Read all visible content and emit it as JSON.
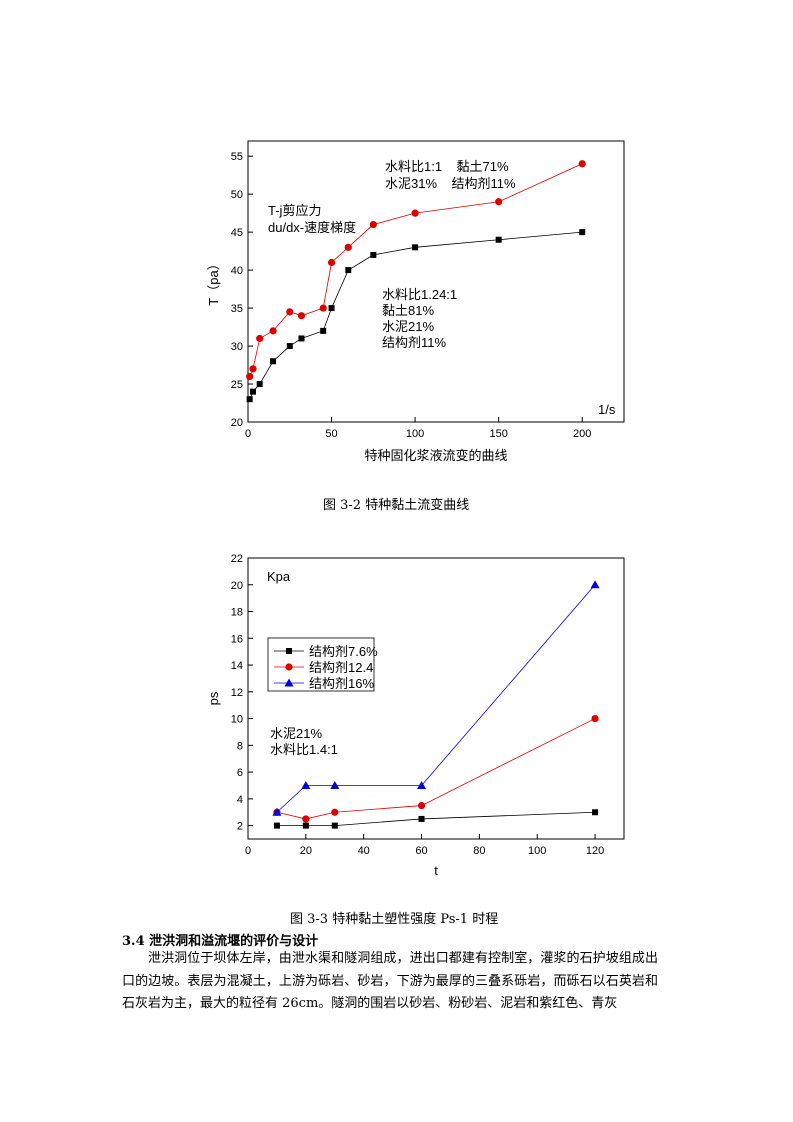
{
  "chart_data": [
    {
      "type": "line",
      "xlabel": "特种固化浆液流变的曲线",
      "ylabel": "T（pa）",
      "xlim": [
        0,
        225
      ],
      "ylim": [
        20,
        57
      ],
      "xticks": [
        0,
        50,
        100,
        150,
        200
      ],
      "yticks": [
        20,
        25,
        30,
        35,
        40,
        45,
        50,
        55
      ],
      "grid": false,
      "annotations": [
        {
          "lines": [
            "水料比1:1    黏土71%",
            "水泥31%    结构剂11%"
          ]
        },
        {
          "lines": [
            "T-j剪应力",
            "du/dx-速度梯度"
          ]
        },
        {
          "lines": [
            "水料比1.24:1",
            "黏土81%",
            "水泥21%",
            "结构剂11%"
          ]
        },
        {
          "lines": [
            "1/s"
          ]
        }
      ],
      "series": [
        {
          "color": "#000000",
          "marker": "square",
          "x": [
            1,
            3,
            7,
            15,
            25,
            32,
            45,
            50,
            60,
            75,
            100,
            150,
            200
          ],
          "y": [
            23,
            24,
            25,
            28,
            30,
            31,
            32,
            35,
            40,
            42,
            43,
            44,
            45
          ]
        },
        {
          "color": "#dd0000",
          "marker": "circle",
          "x": [
            1,
            3,
            7,
            15,
            25,
            32,
            45,
            50,
            60,
            75,
            100,
            150,
            200
          ],
          "y": [
            26,
            27,
            31,
            32,
            34.5,
            34,
            35,
            41,
            43,
            46,
            47.5,
            49,
            54
          ]
        }
      ]
    },
    {
      "type": "line",
      "xlabel": "t",
      "ylabel": "ps",
      "xlim": [
        0,
        130
      ],
      "ylim": [
        1,
        22
      ],
      "xticks": [
        0,
        20,
        40,
        60,
        80,
        100,
        120
      ],
      "yticks": [
        2,
        4,
        6,
        8,
        10,
        12,
        14,
        16,
        18,
        20,
        22
      ],
      "grid": false,
      "legend_position": "middle-left",
      "annotations": [
        {
          "lines": [
            "Kpa"
          ]
        },
        {
          "lines": [
            "水泥21%",
            "水料比1.4:1"
          ]
        }
      ],
      "series": [
        {
          "name": "结构剂7.6%",
          "color": "#000000",
          "marker": "square",
          "x": [
            10,
            20,
            30,
            60,
            120
          ],
          "y": [
            2,
            2,
            2,
            2.5,
            3
          ]
        },
        {
          "name": "结构剂12.4",
          "color": "#dd0000",
          "marker": "circle",
          "x": [
            10,
            20,
            30,
            60,
            120
          ],
          "y": [
            3,
            2.5,
            3,
            3.5,
            10
          ]
        },
        {
          "name": "结构剂16%",
          "color": "#0000dd",
          "marker": "triangle",
          "x": [
            10,
            20,
            30,
            60,
            120
          ],
          "y": [
            3,
            5,
            5,
            5,
            20
          ]
        }
      ]
    }
  ],
  "captions": {
    "fig1": "图 3-2 特种黏土流变曲线",
    "fig2": "图 3-3  特种黏土塑性强度 Ps-1 时程"
  },
  "section": {
    "heading": "3.4 泄洪洞和溢流堰的评价与设计",
    "paragraph": "泄洪洞位于坝体左岸，由泄水渠和隧洞组成，进出口都建有控制室，灌浆的石护坡组成出口的边坡。表层为混凝土，上游为砾岩、砂岩，下游为最厚的三叠系砾岩，而砾石以石英岩和石灰岩为主，最大的粒径有 26cm。隧洞的围岩以砂岩、粉砂岩、泥岩和紫红色、青灰"
  }
}
